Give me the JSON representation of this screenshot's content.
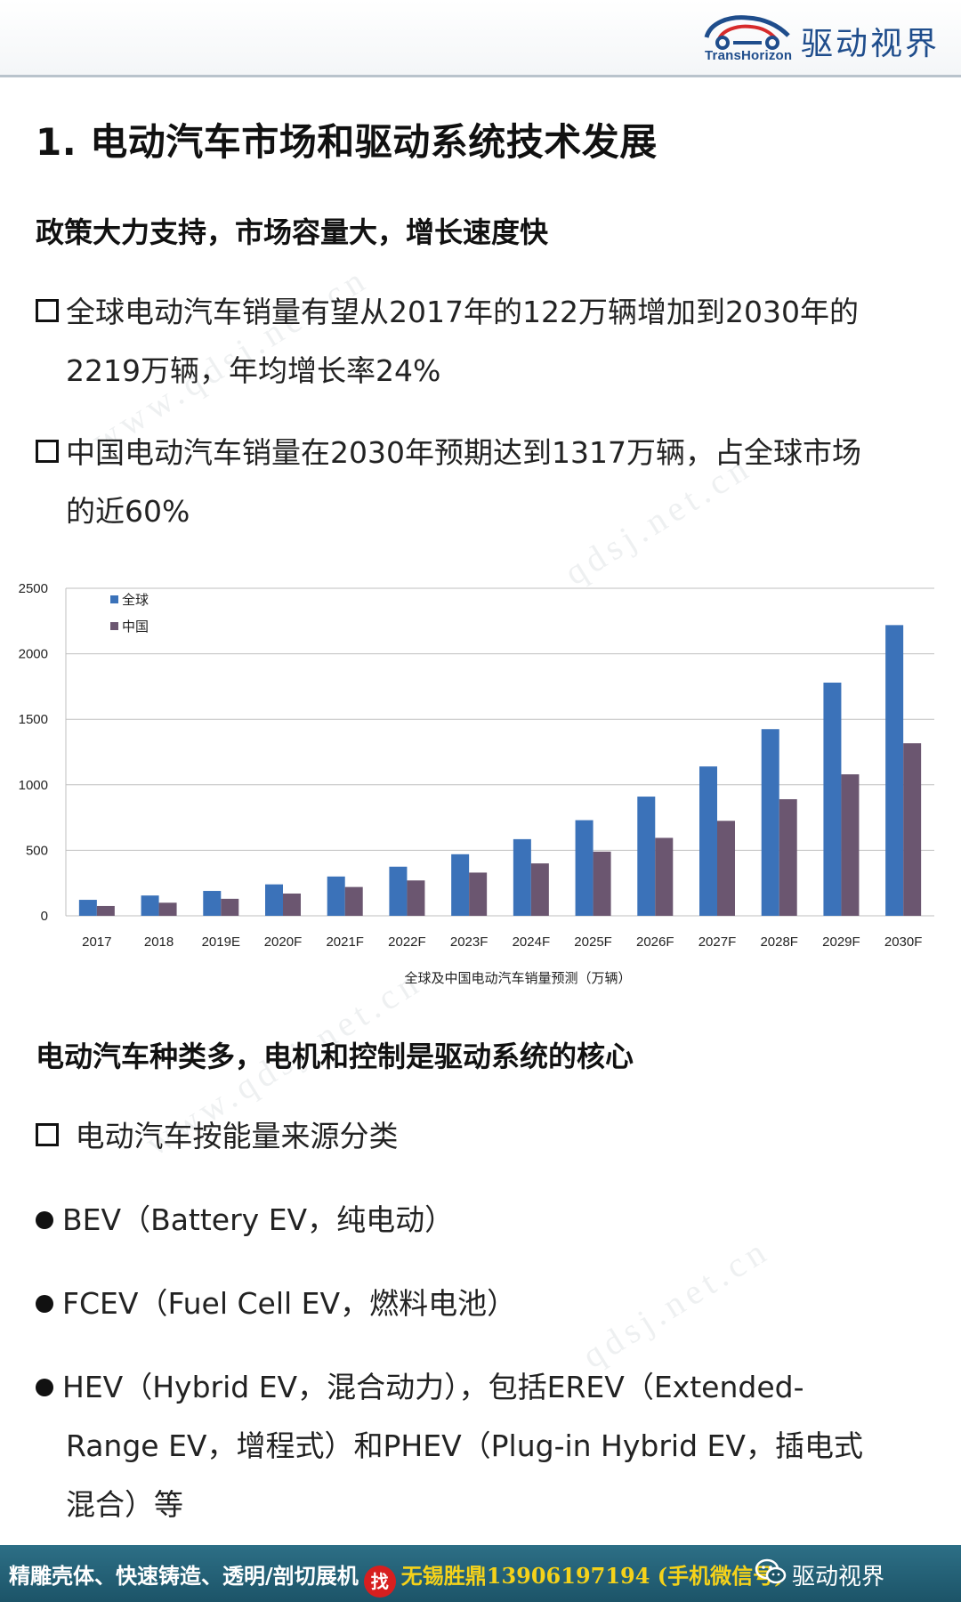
{
  "header": {
    "logo_en": "TransHorizon",
    "logo_cn": "驱动视界",
    "logo_icon": "car-cloud-logo-icon"
  },
  "title": "1. 电动汽车市场和驱动系统技术发展",
  "section1": {
    "heading": "政策大力支持，市场容量大，增长速度快",
    "bullets": [
      {
        "lines": [
          "全球电动汽车销量有望从2017年的122万辆增加到2030年的",
          "2219万辆，年均增长率24%"
        ]
      },
      {
        "lines": [
          "中国电动汽车销量在2030年预期达到1317万辆，占全球市场",
          "的近60%"
        ]
      }
    ]
  },
  "chart_data": {
    "type": "bar",
    "title": "全球及中国电动汽车销量预测（万辆）",
    "categories": [
      "2017",
      "2018",
      "2019E",
      "2020F",
      "2021F",
      "2022F",
      "2023F",
      "2024F",
      "2025F",
      "2026F",
      "2027F",
      "2028F",
      "2029F",
      "2030F"
    ],
    "series": [
      {
        "name": "全球",
        "color": "#3b72b9",
        "values": [
          122,
          155,
          190,
          240,
          300,
          375,
          470,
          585,
          730,
          910,
          1140,
          1425,
          1780,
          2219
        ]
      },
      {
        "name": "中国",
        "color": "#6b5670",
        "values": [
          75,
          100,
          130,
          170,
          220,
          270,
          330,
          400,
          490,
          595,
          725,
          890,
          1080,
          1317
        ]
      }
    ],
    "ylim": [
      0,
      2500
    ],
    "yticks": [
      0,
      500,
      1000,
      1500,
      2000,
      2500
    ],
    "grid": true,
    "legend_position": "top-left"
  },
  "section2": {
    "heading": "电动汽车种类多，电机和控制是驱动系统的核心",
    "intro": "电动汽车按能量来源分类",
    "items": [
      {
        "lines": [
          "BEV（Battery EV，纯电动）"
        ]
      },
      {
        "lines": [
          "FCEV（Fuel Cell EV，燃料电池）"
        ]
      },
      {
        "lines": [
          "HEV（Hybrid EV，混合动力），包括EREV（Extended-",
          "Range EV，增程式）和PHEV（Plug-in Hybrid EV，插电式",
          "混合）等"
        ]
      }
    ]
  },
  "footer": {
    "promo": "精雕壳体、快速铸造、透明/剖切展机",
    "find": "找",
    "contact": "无锡胜鼎13906197194 (手机微信号)",
    "brand": "驱动视界",
    "brand_icon": "wechat-icon"
  }
}
